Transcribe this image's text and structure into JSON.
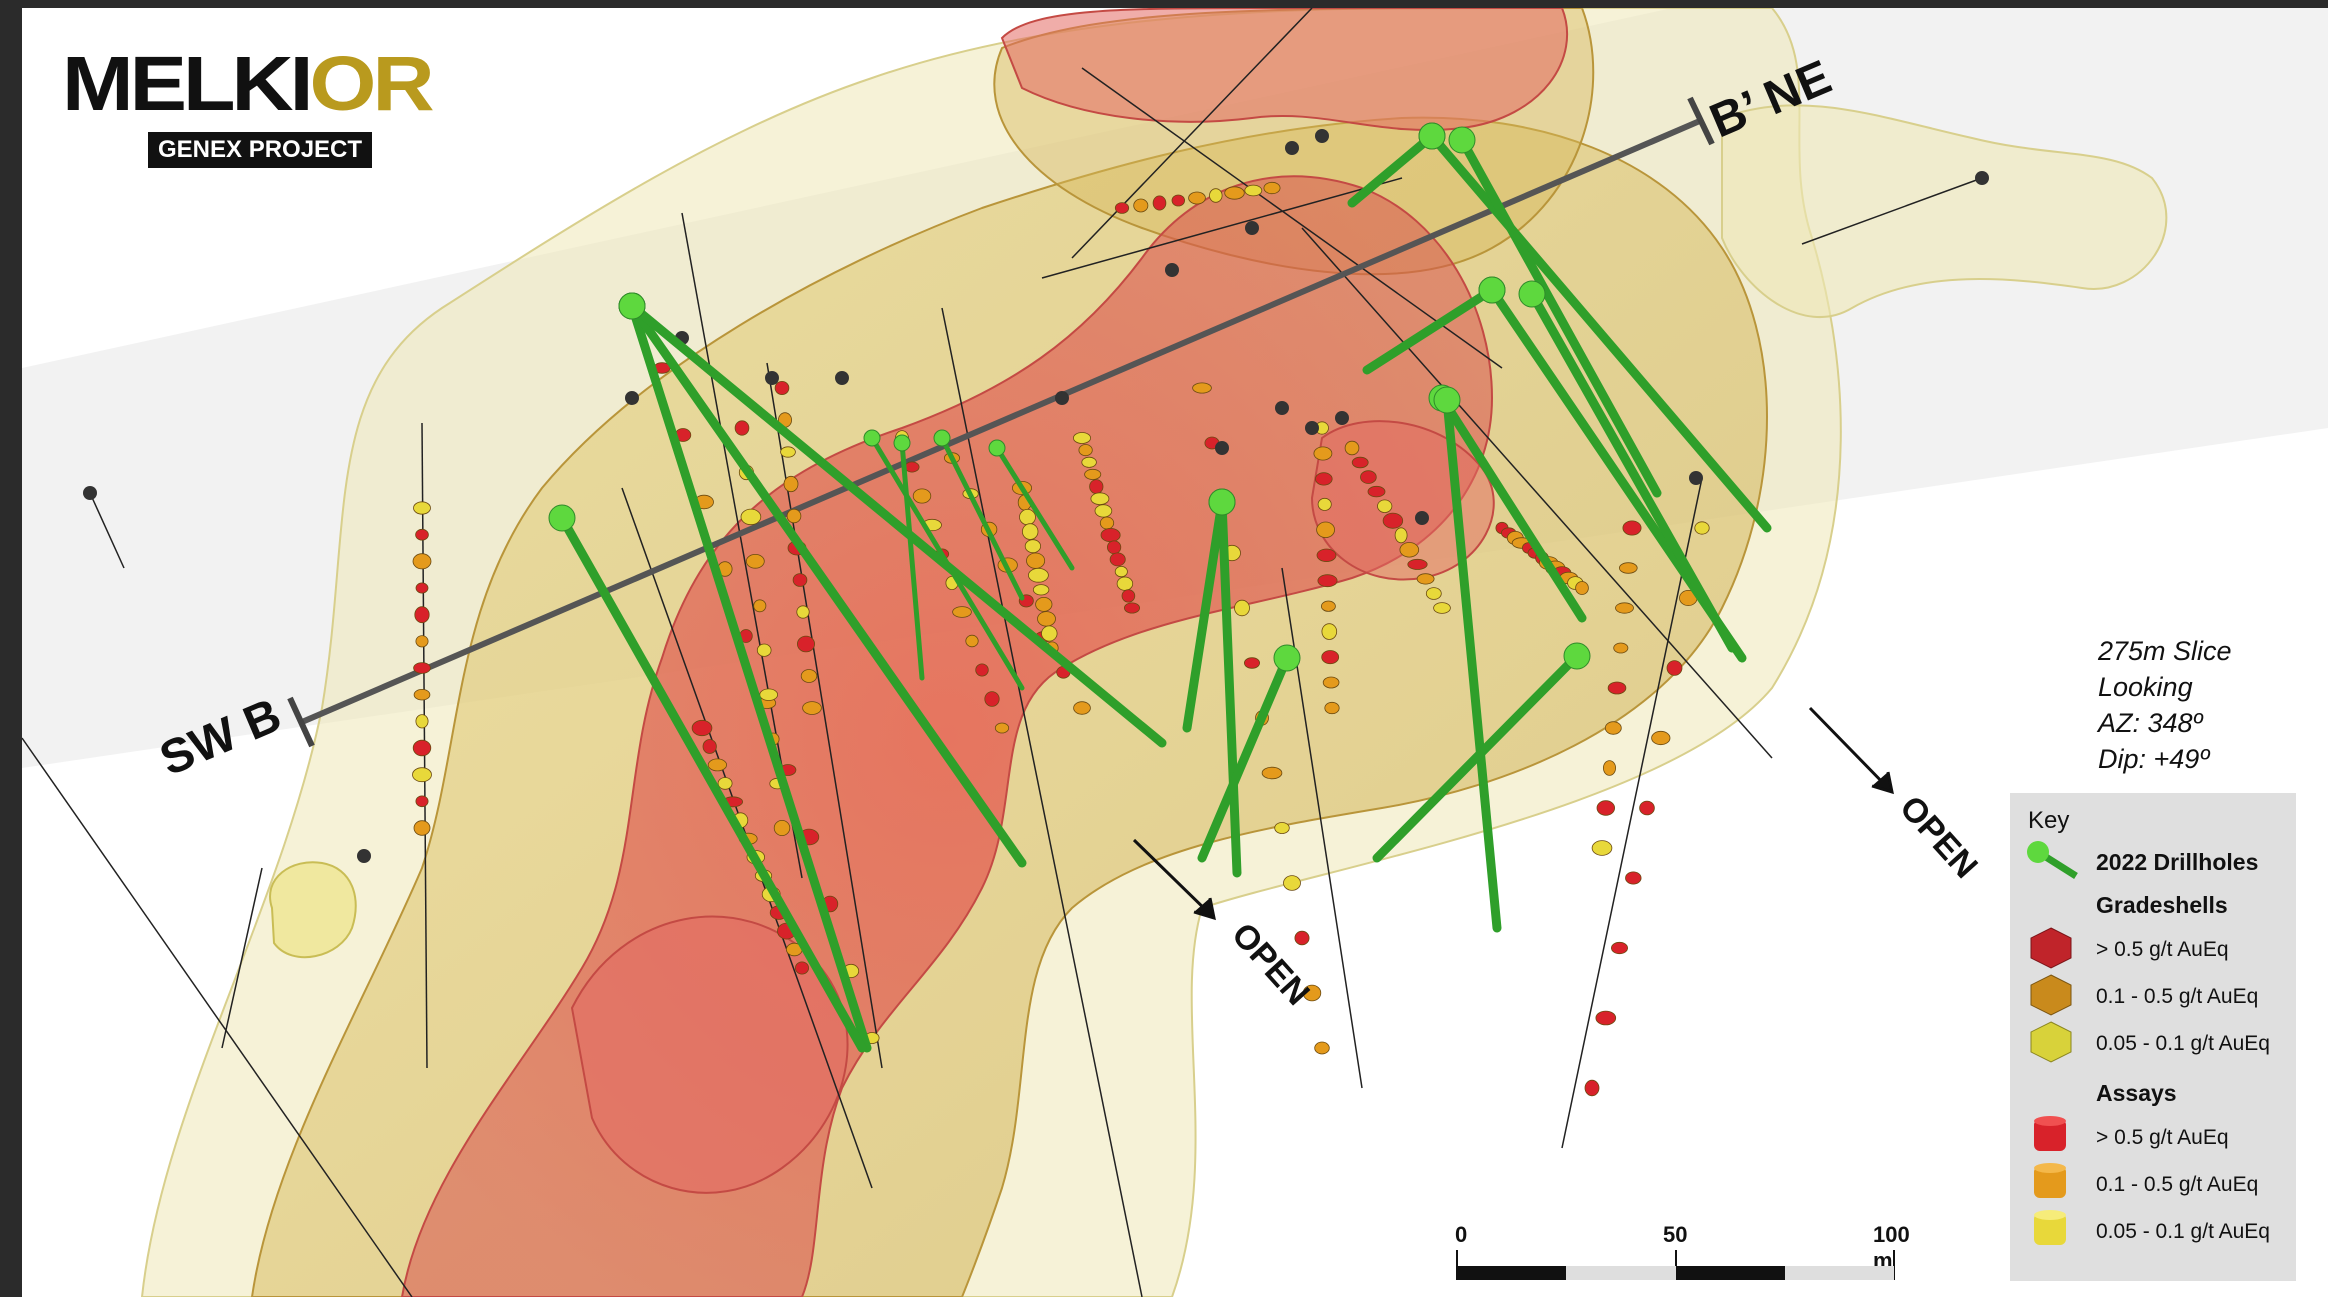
{
  "logo": {
    "name_main": "MELKI",
    "name_accent": "OR",
    "subtitle": "GENEX PROJECT"
  },
  "section": {
    "start_label": "SW B",
    "end_label": "B’ NE"
  },
  "open_labels": [
    "OPEN",
    "OPEN"
  ],
  "view_info": {
    "line1": "275m Slice",
    "line2": "Looking",
    "line3": "AZ: 348º",
    "line4": "Dip: +49º"
  },
  "legend": {
    "title": "Key",
    "drillholes_label": "2022 Drillholes",
    "gradeshells_heading": "Gradeshells",
    "gradeshells": [
      {
        "label": "> 0.5 g/t AuEq",
        "color": "#c0242a"
      },
      {
        "label": "0.1 - 0.5 g/t AuEq",
        "color": "#c98a1c"
      },
      {
        "label": "0.05 - 0.1 g/t AuEq",
        "color": "#d8d23a"
      }
    ],
    "assays_heading": "Assays",
    "assays": [
      {
        "label": "> 0.5 g/t AuEq",
        "color": "#d8222a"
      },
      {
        "label": "0.1 - 0.5 g/t AuEq",
        "color": "#e49a1c"
      },
      {
        "label": "0.05 - 0.1 g/t AuEq",
        "color": "#e8d83a"
      }
    ]
  },
  "scale_bar": {
    "tick0": "0",
    "tick1": "50",
    "tick2": "100 m"
  },
  "colors": {
    "drillhole": "#2f9f2a",
    "drillhole_collar": "#5ed83e",
    "high_grade": "#d9534f",
    "mid_grade": "#d9b34a",
    "low_grade": "#efe6a2",
    "section_line": "#555555"
  }
}
